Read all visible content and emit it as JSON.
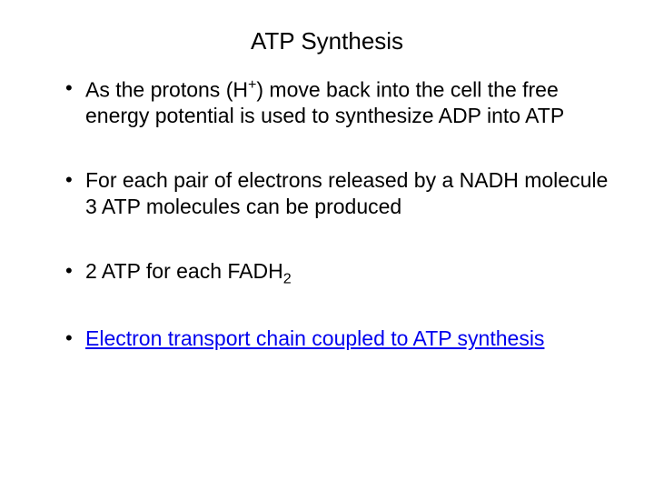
{
  "title": "ATP Synthesis",
  "bullets": [
    {
      "pre": "As the protons (H",
      "sup": "+",
      "post": ") move back into the cell the free energy potential is used to synthesize ADP into ATP",
      "is_link": false
    },
    {
      "text": "For each pair of electrons released by a NADH molecule 3 ATP molecules can be produced",
      "is_link": false
    },
    {
      "pre": "2 ATP for each FADH",
      "sub": "2",
      "is_link": false
    },
    {
      "text": "Electron transport chain coupled to ATP synthesis",
      "is_link": true
    }
  ],
  "colors": {
    "background": "#ffffff",
    "text": "#000000",
    "link": "#0000ee"
  },
  "typography": {
    "title_fontsize": 26,
    "body_fontsize": 23,
    "font_family": "Arial"
  }
}
